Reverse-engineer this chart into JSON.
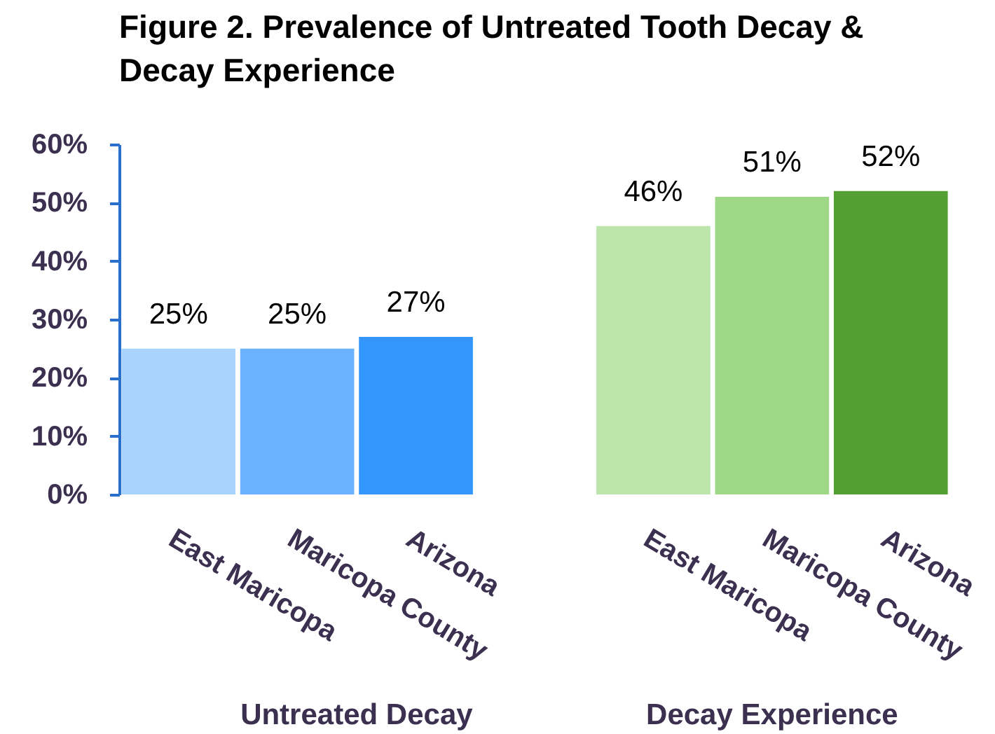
{
  "chart_data": {
    "type": "bar",
    "title": "Figure 2. Prevalence  of Untreated Tooth Decay & Decay Experience",
    "categories": [
      "East Maricopa",
      "Maricopa County",
      "Arizona",
      null,
      "East Maricopa",
      "Maricopa County",
      "Arizona"
    ],
    "values": [
      25,
      25,
      27,
      null,
      46,
      51,
      52
    ],
    "colors": [
      "#a8d4fc",
      "#6ab2fd",
      "#3296fd",
      null,
      "#bbe5ab",
      "#9ed886",
      "#539f32"
    ],
    "value_labels": [
      "25%",
      "25%",
      "27%",
      null,
      "46%",
      "51%",
      "52%"
    ],
    "annotations": [
      "Untreated Decay",
      "Decay Experience"
    ],
    "ylim": [
      0,
      60
    ],
    "yticks": [
      {
        "value": 0,
        "label": "0%"
      },
      {
        "value": 10,
        "label": "10%"
      },
      {
        "value": 20,
        "label": "20%"
      },
      {
        "value": 30,
        "label": "30%"
      },
      {
        "value": 40,
        "label": "40%"
      },
      {
        "value": 50,
        "label": "50%"
      },
      {
        "value": 60,
        "label": "60%"
      }
    ]
  }
}
